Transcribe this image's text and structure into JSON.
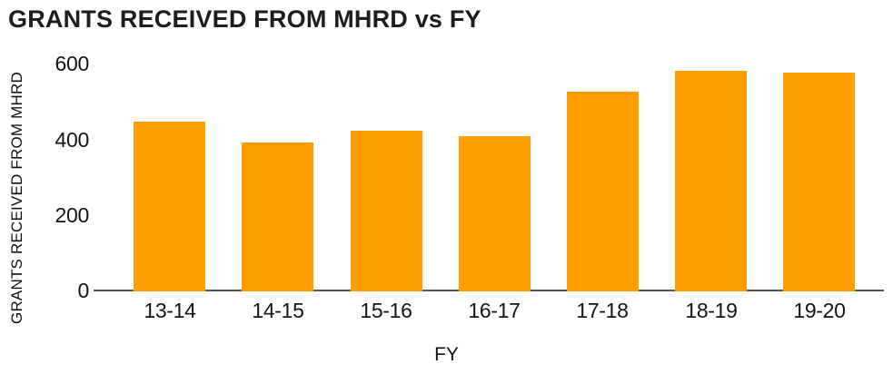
{
  "chart_data": {
    "type": "bar",
    "title": "GRANTS RECEIVED FROM MHRD vs FY",
    "xlabel": "FY",
    "ylabel": "GRANTS RECEIVED FROM MHRD",
    "categories": [
      "13-14",
      "14-15",
      "15-16",
      "16-17",
      "17-18",
      "18-19",
      "19-20"
    ],
    "values": [
      450,
      395,
      425,
      410,
      530,
      585,
      580
    ],
    "yticks": [
      0,
      200,
      400,
      600
    ],
    "ylim": [
      0,
      600
    ],
    "grid": false,
    "legend": null,
    "bar_color": "#FF9E00",
    "axis_line_color": "#58585A",
    "text_color": "#141414",
    "title_color": "#1D1D1D",
    "background_color": "#FFFFFF"
  }
}
